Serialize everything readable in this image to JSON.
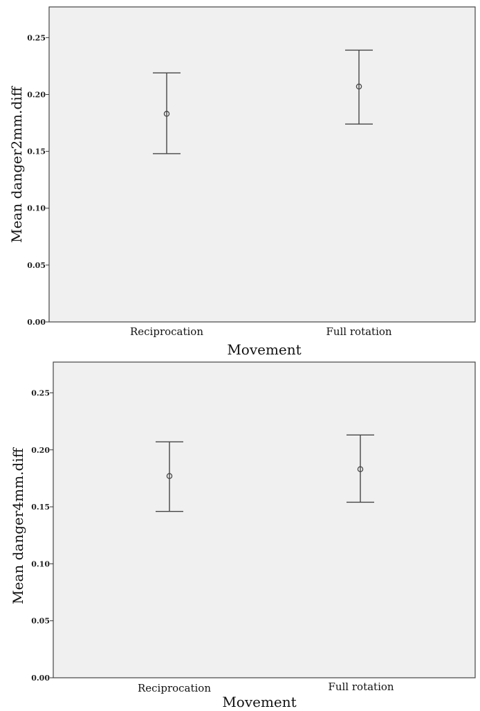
{
  "chart_data": [
    {
      "type": "errorbar",
      "xlabel": "Movement",
      "ylabel": "Mean danger2mm.diff",
      "categories": [
        "Reciprocation",
        "Full rotation"
      ],
      "means": [
        0.183,
        0.207
      ],
      "lower": [
        0.148,
        0.174
      ],
      "upper": [
        0.219,
        0.239
      ],
      "yticks": [
        "0.00",
        "0.05",
        "0.10",
        "0.15",
        "0.20",
        "0.25"
      ],
      "ylim": [
        0,
        0.277
      ],
      "grid": false
    },
    {
      "type": "errorbar",
      "xlabel": "Movement",
      "ylabel": "Mean danger4mm.diff",
      "categories": [
        "Reciprocation",
        "Full rotation"
      ],
      "means": [
        0.177,
        0.183
      ],
      "lower": [
        0.146,
        0.154
      ],
      "upper": [
        0.207,
        0.213
      ],
      "yticks": [
        "0.00",
        "0.05",
        "0.10",
        "0.15",
        "0.20",
        "0.25"
      ],
      "ylim": [
        0,
        0.277
      ],
      "grid": false
    }
  ]
}
